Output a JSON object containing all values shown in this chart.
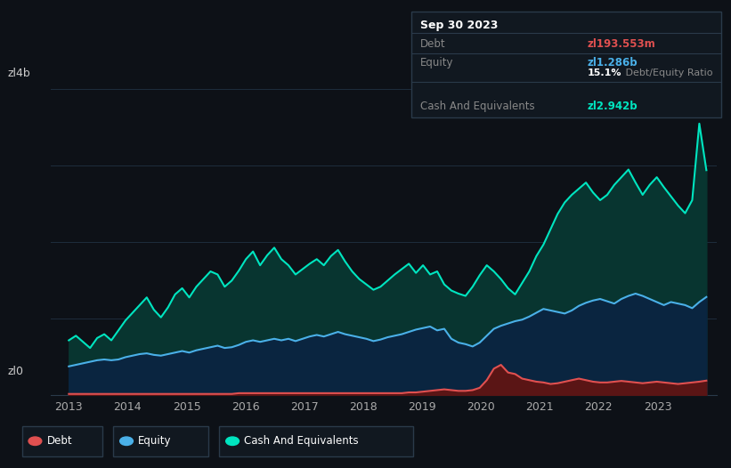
{
  "background_color": "#0d1117",
  "plot_bg_color": "#0d1117",
  "ylabel": "zl4b",
  "y0_label": "zl0",
  "x_ticks": [
    2013,
    2014,
    2015,
    2016,
    2017,
    2018,
    2019,
    2020,
    2021,
    2022,
    2023
  ],
  "ylim": [
    0,
    4.4
  ],
  "grid_color": "#1e2d3d",
  "debt_color": "#e05050",
  "equity_color": "#4ab0e8",
  "cash_color": "#00e5c0",
  "debt_fill": "#5a1515",
  "equity_fill": "#0a2540",
  "cash_fill": "#083530",
  "tooltip": {
    "date": "Sep 30 2023",
    "debt_label": "Debt",
    "debt_value": "zl193.553m",
    "equity_label": "Equity",
    "equity_value": "zl1.286b",
    "ratio_pct": "15.1%",
    "ratio_text": " Debt/Equity Ratio",
    "cash_label": "Cash And Equivalents",
    "cash_value": "zl2.942b"
  },
  "debt_data": [
    0.02,
    0.02,
    0.02,
    0.02,
    0.02,
    0.02,
    0.02,
    0.02,
    0.02,
    0.02,
    0.02,
    0.02,
    0.02,
    0.02,
    0.02,
    0.02,
    0.02,
    0.02,
    0.02,
    0.02,
    0.02,
    0.02,
    0.02,
    0.02,
    0.03,
    0.03,
    0.03,
    0.03,
    0.03,
    0.03,
    0.03,
    0.03,
    0.03,
    0.03,
    0.03,
    0.03,
    0.03,
    0.03,
    0.03,
    0.03,
    0.03,
    0.03,
    0.03,
    0.03,
    0.03,
    0.03,
    0.03,
    0.03,
    0.04,
    0.04,
    0.05,
    0.06,
    0.07,
    0.08,
    0.07,
    0.06,
    0.06,
    0.07,
    0.1,
    0.2,
    0.35,
    0.4,
    0.3,
    0.28,
    0.22,
    0.2,
    0.18,
    0.17,
    0.15,
    0.16,
    0.18,
    0.2,
    0.22,
    0.2,
    0.18,
    0.17,
    0.17,
    0.18,
    0.19,
    0.18,
    0.17,
    0.16,
    0.17,
    0.18,
    0.17,
    0.16,
    0.15,
    0.16,
    0.17,
    0.18,
    0.194
  ],
  "equity_data": [
    0.38,
    0.4,
    0.42,
    0.44,
    0.46,
    0.47,
    0.46,
    0.47,
    0.5,
    0.52,
    0.54,
    0.55,
    0.53,
    0.52,
    0.54,
    0.56,
    0.58,
    0.56,
    0.59,
    0.61,
    0.63,
    0.65,
    0.62,
    0.63,
    0.66,
    0.7,
    0.72,
    0.7,
    0.72,
    0.74,
    0.72,
    0.74,
    0.71,
    0.74,
    0.77,
    0.79,
    0.77,
    0.8,
    0.83,
    0.8,
    0.78,
    0.76,
    0.74,
    0.71,
    0.73,
    0.76,
    0.78,
    0.8,
    0.83,
    0.86,
    0.88,
    0.9,
    0.85,
    0.87,
    0.74,
    0.69,
    0.67,
    0.64,
    0.69,
    0.78,
    0.87,
    0.91,
    0.94,
    0.97,
    0.99,
    1.03,
    1.08,
    1.13,
    1.11,
    1.09,
    1.07,
    1.11,
    1.17,
    1.21,
    1.24,
    1.26,
    1.23,
    1.2,
    1.26,
    1.3,
    1.33,
    1.3,
    1.26,
    1.22,
    1.18,
    1.22,
    1.2,
    1.18,
    1.14,
    1.22,
    1.286
  ],
  "cash_data": [
    0.72,
    0.78,
    0.7,
    0.62,
    0.75,
    0.8,
    0.72,
    0.85,
    0.98,
    1.08,
    1.18,
    1.28,
    1.12,
    1.02,
    1.15,
    1.32,
    1.4,
    1.28,
    1.42,
    1.52,
    1.62,
    1.58,
    1.42,
    1.5,
    1.63,
    1.78,
    1.88,
    1.7,
    1.83,
    1.93,
    1.78,
    1.7,
    1.58,
    1.65,
    1.72,
    1.78,
    1.7,
    1.82,
    1.9,
    1.75,
    1.62,
    1.52,
    1.45,
    1.38,
    1.42,
    1.5,
    1.58,
    1.65,
    1.72,
    1.6,
    1.7,
    1.58,
    1.62,
    1.45,
    1.37,
    1.33,
    1.3,
    1.42,
    1.57,
    1.7,
    1.62,
    1.52,
    1.4,
    1.32,
    1.47,
    1.62,
    1.82,
    1.97,
    2.17,
    2.37,
    2.52,
    2.62,
    2.7,
    2.78,
    2.65,
    2.55,
    2.62,
    2.75,
    2.85,
    2.95,
    2.78,
    2.62,
    2.75,
    2.85,
    2.72,
    2.6,
    2.48,
    2.38,
    2.55,
    3.55,
    2.942
  ]
}
